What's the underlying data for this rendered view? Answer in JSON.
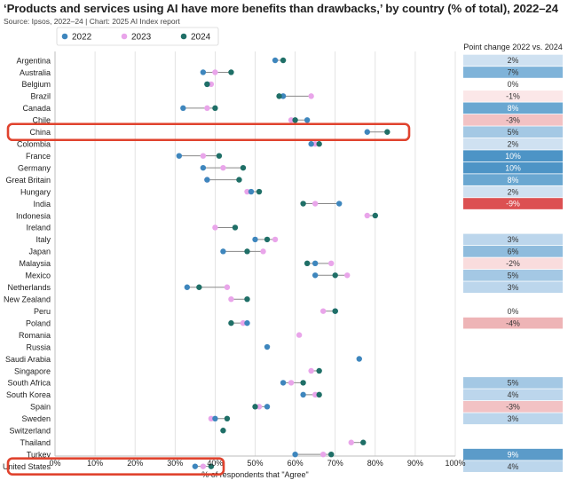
{
  "title": "‘Products and services using AI have more benefits than drawbacks,’ by country (% of total), 2022–24",
  "source": "Source: Ipsos, 2022–24 | Chart: 2025 AI Index report",
  "colors": {
    "2022": "#3e86bd",
    "2023": "#e9a5ea",
    "2024": "#1f6f67",
    "highlight": "#e0432e",
    "connector": "#888888"
  },
  "chart_data": {
    "type": "dumbbell",
    "xlabel": "% of respondents that \"Agree\"",
    "xlim": [
      0,
      100
    ],
    "xticks": [
      "0%",
      "10%",
      "20%",
      "30%",
      "40%",
      "50%",
      "60%",
      "70%",
      "80%",
      "90%",
      "100%"
    ],
    "legend": [
      "2022",
      "2023",
      "2024"
    ],
    "legend_position": "top-left",
    "change_header": "Point change 2022 vs. 2024",
    "highlighted": [
      "China",
      "United States"
    ],
    "rows": [
      {
        "country": "Argentina",
        "y2022": 55,
        "y2023": null,
        "y2024": 57,
        "change": "2%"
      },
      {
        "country": "Australia",
        "y2022": 37,
        "y2023": 40,
        "y2024": 44,
        "change": "7%"
      },
      {
        "country": "Belgium",
        "y2022": 38,
        "y2023": 39,
        "y2024": 38,
        "change": "0%"
      },
      {
        "country": "Brazil",
        "y2022": 57,
        "y2023": 64,
        "y2024": 56,
        "change": "-1%"
      },
      {
        "country": "Canada",
        "y2022": 32,
        "y2023": 38,
        "y2024": 40,
        "change": "8%"
      },
      {
        "country": "Chile",
        "y2022": 63,
        "y2023": 59,
        "y2024": 60,
        "change": "-3%"
      },
      {
        "country": "China",
        "y2022": 78,
        "y2023": null,
        "y2024": 83,
        "change": "5%"
      },
      {
        "country": "Colombia",
        "y2022": 64,
        "y2023": 65,
        "y2024": 66,
        "change": "2%"
      },
      {
        "country": "France",
        "y2022": 31,
        "y2023": 37,
        "y2024": 41,
        "change": "10%"
      },
      {
        "country": "Germany",
        "y2022": 37,
        "y2023": 42,
        "y2024": 47,
        "change": "10%"
      },
      {
        "country": "Great Britain",
        "y2022": 38,
        "y2023": 38,
        "y2024": 46,
        "change": "8%"
      },
      {
        "country": "Hungary",
        "y2022": 49,
        "y2023": 48,
        "y2024": 51,
        "change": "2%"
      },
      {
        "country": "India",
        "y2022": 71,
        "y2023": 65,
        "y2024": 62,
        "change": "-9%"
      },
      {
        "country": "Indonesia",
        "y2022": null,
        "y2023": 78,
        "y2024": 80,
        "change": ""
      },
      {
        "country": "Ireland",
        "y2022": null,
        "y2023": 40,
        "y2024": 45,
        "change": ""
      },
      {
        "country": "Italy",
        "y2022": 50,
        "y2023": 55,
        "y2024": 53,
        "change": "3%"
      },
      {
        "country": "Japan",
        "y2022": 42,
        "y2023": 52,
        "y2024": 48,
        "change": "6%"
      },
      {
        "country": "Malaysia",
        "y2022": 65,
        "y2023": 69,
        "y2024": 63,
        "change": "-2%"
      },
      {
        "country": "Mexico",
        "y2022": 65,
        "y2023": 73,
        "y2024": 70,
        "change": "5%"
      },
      {
        "country": "Netherlands",
        "y2022": 33,
        "y2023": 43,
        "y2024": 36,
        "change": "3%"
      },
      {
        "country": "New Zealand",
        "y2022": null,
        "y2023": 44,
        "y2024": 48,
        "change": ""
      },
      {
        "country": "Peru",
        "y2022": 70,
        "y2023": 67,
        "y2024": 70,
        "change": "0%"
      },
      {
        "country": "Poland",
        "y2022": 48,
        "y2023": 47,
        "y2024": 44,
        "change": "-4%"
      },
      {
        "country": "Romania",
        "y2022": null,
        "y2023": 61,
        "y2024": null,
        "change": ""
      },
      {
        "country": "Russia",
        "y2022": 53,
        "y2023": null,
        "y2024": null,
        "change": ""
      },
      {
        "country": "Saudi Arabia",
        "y2022": 76,
        "y2023": null,
        "y2024": null,
        "change": ""
      },
      {
        "country": "Singapore",
        "y2022": null,
        "y2023": 64,
        "y2024": 66,
        "change": ""
      },
      {
        "country": "South Africa",
        "y2022": 57,
        "y2023": 59,
        "y2024": 62,
        "change": "5%"
      },
      {
        "country": "South Korea",
        "y2022": 62,
        "y2023": 65,
        "y2024": 66,
        "change": "4%"
      },
      {
        "country": "Spain",
        "y2022": 53,
        "y2023": 51,
        "y2024": 50,
        "change": "-3%"
      },
      {
        "country": "Sweden",
        "y2022": 40,
        "y2023": 39,
        "y2024": 43,
        "change": "3%"
      },
      {
        "country": "Switzerland",
        "y2022": null,
        "y2023": null,
        "y2024": 42,
        "change": ""
      },
      {
        "country": "Thailand",
        "y2022": null,
        "y2023": 74,
        "y2024": 77,
        "change": ""
      },
      {
        "country": "Turkey",
        "y2022": 60,
        "y2023": 67,
        "y2024": 69,
        "change": "9%"
      },
      {
        "country": "United States",
        "y2022": 35,
        "y2023": 37,
        "y2024": 39,
        "change": "4%"
      }
    ]
  }
}
